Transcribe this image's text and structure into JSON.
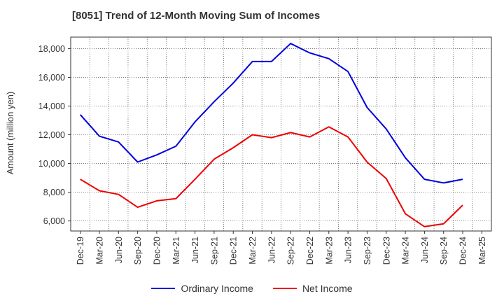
{
  "chart_data": {
    "type": "line",
    "title": "[8051]  Trend of 12-Month Moving Sum of Incomes",
    "ylabel": "Amount (million yen)",
    "xlabel": "",
    "ylim": [
      5300,
      18800
    ],
    "yticks": [
      6000,
      8000,
      10000,
      12000,
      14000,
      16000,
      18000
    ],
    "ytick_labels": [
      "6,000",
      "8,000",
      "10,000",
      "12,000",
      "14,000",
      "16,000",
      "18,000"
    ],
    "categories": [
      "Dec-19",
      "Mar-20",
      "Jun-20",
      "Sep-20",
      "Dec-20",
      "Mar-21",
      "Jun-21",
      "Sep-21",
      "Dec-21",
      "Mar-22",
      "Jun-22",
      "Sep-22",
      "Dec-22",
      "Mar-23",
      "Jun-23",
      "Sep-23",
      "Dec-23",
      "Mar-24",
      "Jun-24",
      "Sep-24",
      "Dec-24",
      "Mar-25"
    ],
    "grid": true,
    "legend_position": "bottom-center",
    "series": [
      {
        "name": "Ordinary Income",
        "color": "#0000dd",
        "values": [
          13400,
          11900,
          11500,
          10100,
          10600,
          11200,
          12900,
          14300,
          15600,
          17100,
          17100,
          18350,
          17700,
          17300,
          16400,
          13900,
          12400,
          10400,
          8900,
          8650,
          8900,
          null
        ]
      },
      {
        "name": "Net Income",
        "color": "#ee0000",
        "values": [
          8900,
          8100,
          7850,
          6950,
          7400,
          7550,
          8900,
          10300,
          11100,
          12000,
          11800,
          12150,
          11850,
          12550,
          11850,
          10100,
          8950,
          6500,
          5600,
          5800,
          7100,
          null
        ]
      }
    ]
  }
}
